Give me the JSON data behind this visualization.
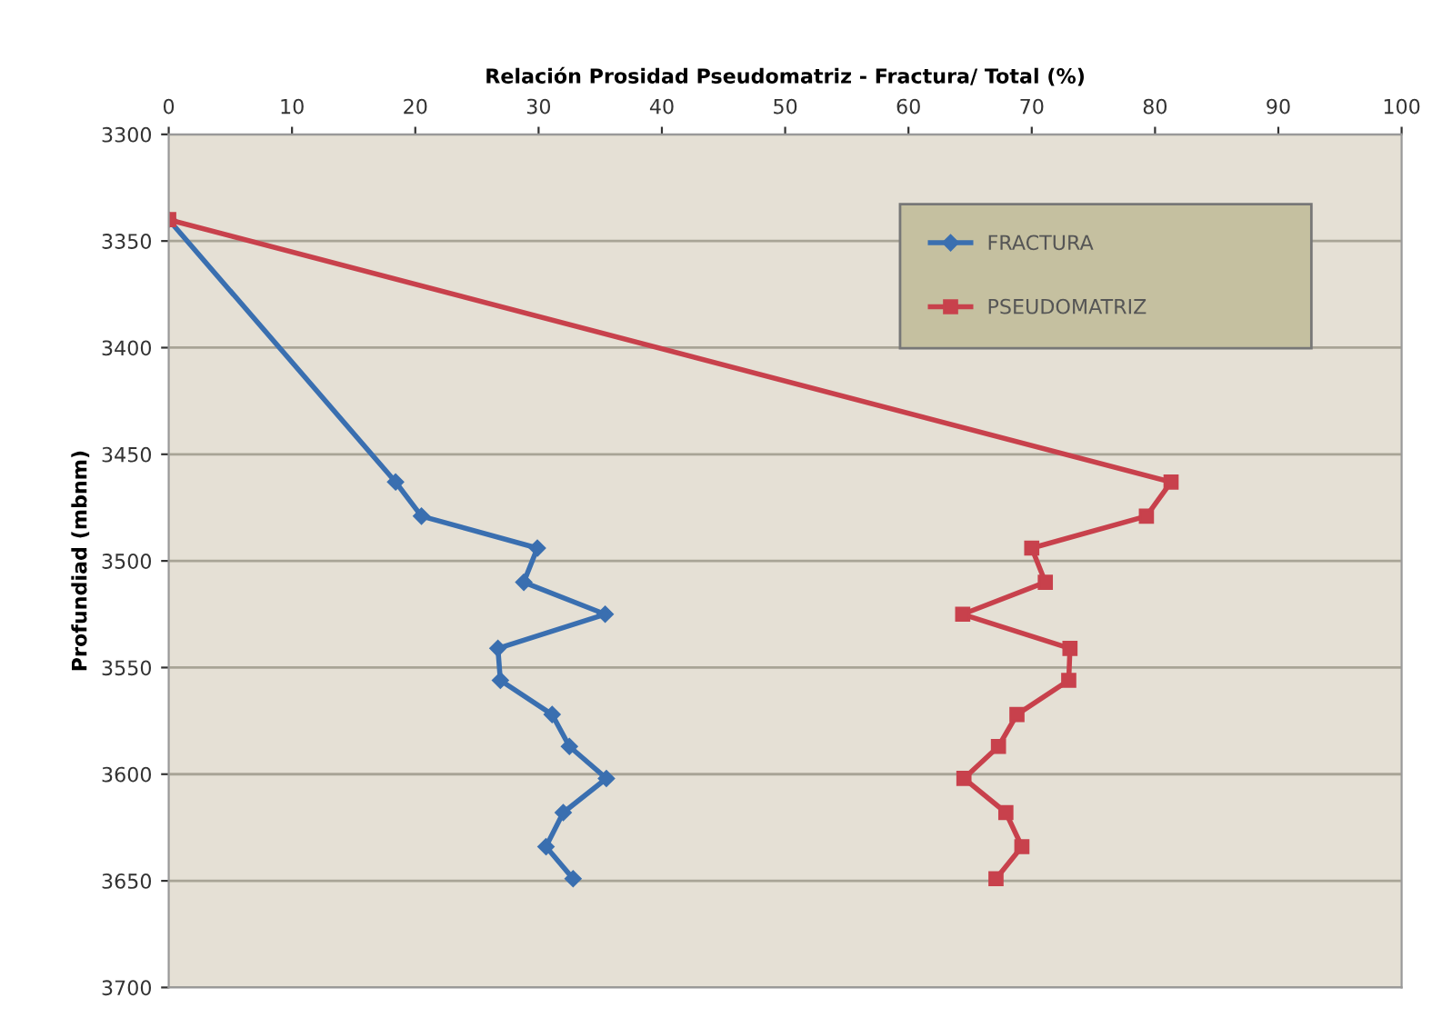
{
  "chart_data": {
    "type": "line",
    "xlabel": "Relación Prosidad Pseudomatriz - Fractura/ Total (%)",
    "ylabel": "Profundiad (mbnm)",
    "xlim": [
      0,
      100
    ],
    "xticks": [
      0,
      10,
      20,
      30,
      40,
      50,
      60,
      70,
      80,
      90,
      100
    ],
    "ylim": [
      3700,
      3300
    ],
    "yticks": [
      3300,
      3350,
      3400,
      3450,
      3500,
      3550,
      3600,
      3650,
      3700
    ],
    "grid": "y",
    "legend": "top right",
    "series": [
      {
        "name": "FRACTURA",
        "color": "#3a6fb0",
        "marker": "diamond",
        "x": [
          0,
          18.4,
          20.5,
          29.9,
          28.8,
          35.4,
          26.7,
          26.9,
          31.1,
          32.5,
          35.5,
          32.0,
          30.6,
          32.8
        ],
        "values": [
          3340,
          3463,
          3479,
          3494,
          3510,
          3525,
          3541,
          3556,
          3572,
          3587,
          3602,
          3618,
          3634,
          3649
        ]
      },
      {
        "name": "PSEUDOMATRIZ",
        "color": "#c8414c",
        "marker": "square",
        "x": [
          0,
          81.3,
          79.3,
          70.0,
          71.1,
          64.4,
          73.1,
          73.0,
          68.8,
          67.3,
          64.5,
          67.9,
          69.2,
          67.1
        ],
        "values": [
          3340,
          3463,
          3479,
          3494,
          3510,
          3525,
          3541,
          3556,
          3572,
          3587,
          3602,
          3618,
          3634,
          3649
        ]
      }
    ]
  }
}
